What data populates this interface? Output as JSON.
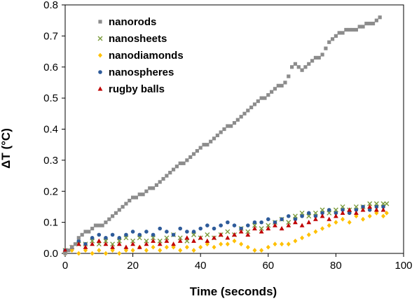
{
  "chart_data": {
    "type": "scatter",
    "xlabel": "Time (seconds)",
    "ylabel": "ΔT (°C)",
    "xlim": [
      0,
      100
    ],
    "ylim": [
      0,
      0.8
    ],
    "xticks": [
      "0",
      "20",
      "40",
      "60",
      "80",
      "100"
    ],
    "yticks": [
      "0.0",
      "0.1",
      "0.2",
      "0.3",
      "0.4",
      "0.5",
      "0.6",
      "0.7",
      "0.8"
    ],
    "legend_position": "top-left",
    "grid": false,
    "series": [
      {
        "name": "nanorods",
        "marker": "square",
        "color": "#8c8c8c",
        "points": [
          [
            0,
            0
          ],
          [
            1,
            0.01
          ],
          [
            2,
            0.02
          ],
          [
            3,
            0.03
          ],
          [
            4,
            0.05
          ],
          [
            5,
            0.06
          ],
          [
            6,
            0.07
          ],
          [
            7,
            0.07
          ],
          [
            8,
            0.08
          ],
          [
            9,
            0.09
          ],
          [
            10,
            0.09
          ],
          [
            11,
            0.09
          ],
          [
            12,
            0.1
          ],
          [
            13,
            0.11
          ],
          [
            14,
            0.12
          ],
          [
            15,
            0.13
          ],
          [
            16,
            0.14
          ],
          [
            17,
            0.15
          ],
          [
            18,
            0.16
          ],
          [
            19,
            0.17
          ],
          [
            20,
            0.18
          ],
          [
            21,
            0.18
          ],
          [
            22,
            0.19
          ],
          [
            23,
            0.19
          ],
          [
            24,
            0.2
          ],
          [
            25,
            0.21
          ],
          [
            26,
            0.21
          ],
          [
            27,
            0.22
          ],
          [
            28,
            0.23
          ],
          [
            29,
            0.24
          ],
          [
            30,
            0.25
          ],
          [
            31,
            0.26
          ],
          [
            32,
            0.27
          ],
          [
            33,
            0.28
          ],
          [
            34,
            0.29
          ],
          [
            35,
            0.29
          ],
          [
            36,
            0.3
          ],
          [
            37,
            0.31
          ],
          [
            38,
            0.32
          ],
          [
            39,
            0.33
          ],
          [
            40,
            0.34
          ],
          [
            41,
            0.35
          ],
          [
            42,
            0.35
          ],
          [
            43,
            0.36
          ],
          [
            44,
            0.37
          ],
          [
            45,
            0.38
          ],
          [
            46,
            0.39
          ],
          [
            47,
            0.4
          ],
          [
            48,
            0.41
          ],
          [
            49,
            0.41
          ],
          [
            50,
            0.42
          ],
          [
            51,
            0.43
          ],
          [
            52,
            0.44
          ],
          [
            53,
            0.45
          ],
          [
            54,
            0.46
          ],
          [
            55,
            0.47
          ],
          [
            56,
            0.48
          ],
          [
            57,
            0.49
          ],
          [
            58,
            0.5
          ],
          [
            59,
            0.5
          ],
          [
            60,
            0.51
          ],
          [
            61,
            0.52
          ],
          [
            62,
            0.53
          ],
          [
            63,
            0.54
          ],
          [
            64,
            0.54
          ],
          [
            65,
            0.55
          ],
          [
            66,
            0.57
          ],
          [
            67,
            0.6
          ],
          [
            68,
            0.61
          ],
          [
            69,
            0.6
          ],
          [
            70,
            0.59
          ],
          [
            71,
            0.6
          ],
          [
            72,
            0.61
          ],
          [
            73,
            0.62
          ],
          [
            74,
            0.63
          ],
          [
            75,
            0.63
          ],
          [
            76,
            0.64
          ],
          [
            77,
            0.66
          ],
          [
            78,
            0.68
          ],
          [
            79,
            0.69
          ],
          [
            80,
            0.7
          ],
          [
            81,
            0.71
          ],
          [
            82,
            0.71
          ],
          [
            83,
            0.72
          ],
          [
            84,
            0.72
          ],
          [
            85,
            0.72
          ],
          [
            86,
            0.72
          ],
          [
            87,
            0.73
          ],
          [
            88,
            0.73
          ],
          [
            89,
            0.74
          ],
          [
            90,
            0.74
          ],
          [
            91,
            0.74
          ],
          [
            92,
            0.75
          ],
          [
            93,
            0.76
          ]
        ]
      },
      {
        "name": "nanosheets",
        "marker": "x",
        "color": "#7a9a3a",
        "points": [
          [
            0,
            0.01
          ],
          [
            2,
            0.02
          ],
          [
            4,
            0.03
          ],
          [
            6,
            0.03
          ],
          [
            8,
            0.04
          ],
          [
            10,
            0.03
          ],
          [
            12,
            0.04
          ],
          [
            14,
            0.03
          ],
          [
            16,
            0.04
          ],
          [
            18,
            0.05
          ],
          [
            20,
            0.04
          ],
          [
            22,
            0.05
          ],
          [
            24,
            0.04
          ],
          [
            26,
            0.05
          ],
          [
            28,
            0.04
          ],
          [
            30,
            0.05
          ],
          [
            32,
            0.06
          ],
          [
            34,
            0.05
          ],
          [
            36,
            0.04
          ],
          [
            38,
            0.06
          ],
          [
            40,
            0.05
          ],
          [
            42,
            0.06
          ],
          [
            44,
            0.05
          ],
          [
            46,
            0.06
          ],
          [
            48,
            0.07
          ],
          [
            50,
            0.06
          ],
          [
            52,
            0.08
          ],
          [
            54,
            0.07
          ],
          [
            56,
            0.09
          ],
          [
            58,
            0.08
          ],
          [
            60,
            0.09
          ],
          [
            62,
            0.1
          ],
          [
            64,
            0.11
          ],
          [
            66,
            0.1
          ],
          [
            68,
            0.12
          ],
          [
            70,
            0.13
          ],
          [
            72,
            0.12
          ],
          [
            74,
            0.13
          ],
          [
            76,
            0.14
          ],
          [
            78,
            0.13
          ],
          [
            80,
            0.14
          ],
          [
            82,
            0.15
          ],
          [
            84,
            0.14
          ],
          [
            86,
            0.15
          ],
          [
            88,
            0.15
          ],
          [
            90,
            0.16
          ],
          [
            92,
            0.16
          ],
          [
            94,
            0.16
          ],
          [
            95,
            0.16
          ]
        ]
      },
      {
        "name": "nanodiamonds",
        "marker": "diamond",
        "color": "#ffc000",
        "points": [
          [
            0,
            0
          ],
          [
            2,
            0.01
          ],
          [
            4,
            0
          ],
          [
            6,
            0.01
          ],
          [
            8,
            0
          ],
          [
            10,
            0.01
          ],
          [
            12,
            0
          ],
          [
            14,
            0.01
          ],
          [
            16,
            0
          ],
          [
            18,
            0.01
          ],
          [
            20,
            0.01
          ],
          [
            22,
            0.02
          ],
          [
            24,
            0.01
          ],
          [
            26,
            0.02
          ],
          [
            28,
            0.01
          ],
          [
            30,
            0.02
          ],
          [
            32,
            0.02
          ],
          [
            34,
            0.01
          ],
          [
            36,
            0.02
          ],
          [
            38,
            0.01
          ],
          [
            40,
            0.02
          ],
          [
            42,
            0.03
          ],
          [
            44,
            0.02
          ],
          [
            46,
            0.03
          ],
          [
            48,
            0.03
          ],
          [
            50,
            0.04
          ],
          [
            52,
            0.03
          ],
          [
            54,
            0.02
          ],
          [
            56,
            0.01
          ],
          [
            58,
            0.01
          ],
          [
            60,
            0.02
          ],
          [
            62,
            0.03
          ],
          [
            64,
            0.03
          ],
          [
            66,
            0.03
          ],
          [
            68,
            0.04
          ],
          [
            70,
            0.05
          ],
          [
            72,
            0.06
          ],
          [
            74,
            0.07
          ],
          [
            76,
            0.08
          ],
          [
            78,
            0.09
          ],
          [
            80,
            0.1
          ],
          [
            82,
            0.11
          ],
          [
            84,
            0.1
          ],
          [
            86,
            0.12
          ],
          [
            88,
            0.11
          ],
          [
            90,
            0.12
          ],
          [
            92,
            0.13
          ],
          [
            94,
            0.12
          ],
          [
            95,
            0.13
          ]
        ]
      },
      {
        "name": "nanospheres",
        "marker": "circle",
        "color": "#2e5b9a",
        "points": [
          [
            0,
            0.01
          ],
          [
            2,
            0.02
          ],
          [
            4,
            0.04
          ],
          [
            6,
            0.03
          ],
          [
            8,
            0.05
          ],
          [
            10,
            0.06
          ],
          [
            12,
            0.05
          ],
          [
            14,
            0.06
          ],
          [
            16,
            0.05
          ],
          [
            18,
            0.06
          ],
          [
            20,
            0.07
          ],
          [
            22,
            0.06
          ],
          [
            24,
            0.07
          ],
          [
            26,
            0.06
          ],
          [
            28,
            0.08
          ],
          [
            30,
            0.07
          ],
          [
            32,
            0.06
          ],
          [
            34,
            0.08
          ],
          [
            36,
            0.07
          ],
          [
            38,
            0.07
          ],
          [
            40,
            0.08
          ],
          [
            42,
            0.09
          ],
          [
            44,
            0.08
          ],
          [
            46,
            0.09
          ],
          [
            48,
            0.1
          ],
          [
            50,
            0.09
          ],
          [
            52,
            0.08
          ],
          [
            54,
            0.09
          ],
          [
            56,
            0.1
          ],
          [
            58,
            0.1
          ],
          [
            60,
            0.11
          ],
          [
            62,
            0.1
          ],
          [
            64,
            0.11
          ],
          [
            66,
            0.12
          ],
          [
            68,
            0.11
          ],
          [
            70,
            0.12
          ],
          [
            72,
            0.13
          ],
          [
            74,
            0.12
          ],
          [
            76,
            0.13
          ],
          [
            78,
            0.14
          ],
          [
            80,
            0.13
          ],
          [
            82,
            0.14
          ],
          [
            84,
            0.13
          ],
          [
            86,
            0.14
          ],
          [
            88,
            0.15
          ],
          [
            90,
            0.14
          ],
          [
            92,
            0.15
          ],
          [
            94,
            0.15
          ]
        ]
      },
      {
        "name": "rugby balls",
        "marker": "triangle",
        "color": "#c00000",
        "points": [
          [
            0,
            0.01
          ],
          [
            2,
            0.02
          ],
          [
            4,
            0.03
          ],
          [
            6,
            0.02
          ],
          [
            8,
            0.03
          ],
          [
            10,
            0.04
          ],
          [
            12,
            0.03
          ],
          [
            14,
            0.02
          ],
          [
            16,
            0.03
          ],
          [
            18,
            0.02
          ],
          [
            20,
            0.03
          ],
          [
            22,
            0.02
          ],
          [
            24,
            0.03
          ],
          [
            26,
            0.04
          ],
          [
            28,
            0.03
          ],
          [
            30,
            0.04
          ],
          [
            32,
            0.03
          ],
          [
            34,
            0.04
          ],
          [
            36,
            0.05
          ],
          [
            38,
            0.04
          ],
          [
            40,
            0.05
          ],
          [
            42,
            0.04
          ],
          [
            44,
            0.05
          ],
          [
            46,
            0.06
          ],
          [
            48,
            0.05
          ],
          [
            50,
            0.06
          ],
          [
            52,
            0.07
          ],
          [
            54,
            0.06
          ],
          [
            56,
            0.08
          ],
          [
            58,
            0.07
          ],
          [
            60,
            0.08
          ],
          [
            62,
            0.09
          ],
          [
            64,
            0.08
          ],
          [
            66,
            0.09
          ],
          [
            68,
            0.1
          ],
          [
            70,
            0.09
          ],
          [
            72,
            0.1
          ],
          [
            74,
            0.11
          ],
          [
            76,
            0.12
          ],
          [
            78,
            0.11
          ],
          [
            80,
            0.12
          ],
          [
            82,
            0.13
          ],
          [
            84,
            0.14
          ],
          [
            86,
            0.13
          ],
          [
            88,
            0.14
          ],
          [
            90,
            0.15
          ],
          [
            92,
            0.14
          ],
          [
            94,
            0.14
          ]
        ]
      }
    ]
  }
}
